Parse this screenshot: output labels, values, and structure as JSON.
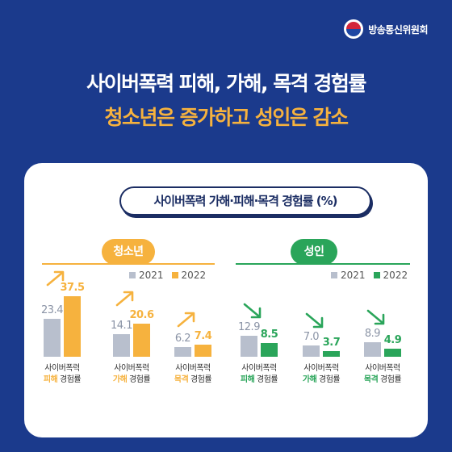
{
  "org": {
    "name": "방송통신위원회",
    "logo_icon": "taegeuk-logo"
  },
  "headline": {
    "line1": "사이버폭력 피해, 가해, 목격 경험률",
    "line2": "청소년은 증가하고 성인은 감소"
  },
  "card": {
    "title": "사이버폭력 가해·피해·목격 경험률 (%)"
  },
  "colors": {
    "background": "#1b3a8c",
    "youth_accent": "#f6b23e",
    "adult_accent": "#2aa55a",
    "year2021": "#b8bfcd",
    "headline2": "#f6b23e"
  },
  "chart_data": [
    {
      "type": "bar",
      "title": "청소년",
      "categories": [
        "사이버폭력 피해 경험률",
        "사이버폭력 가해 경험률",
        "사이버폭력 목격 경험률"
      ],
      "series": [
        {
          "name": "2021",
          "values": [
            23.4,
            14.1,
            6.2
          ]
        },
        {
          "name": "2022",
          "values": [
            37.5,
            20.6,
            7.4
          ]
        }
      ],
      "trend": "up"
    },
    {
      "type": "bar",
      "title": "성인",
      "categories": [
        "사이버폭력 피해 경험률",
        "사이버폭력 가해 경험률",
        "사이버폭력 목격 경험률"
      ],
      "series": [
        {
          "name": "2021",
          "values": [
            12.9,
            7.0,
            8.9
          ]
        },
        {
          "name": "2022",
          "values": [
            8.5,
            3.7,
            4.9
          ]
        }
      ],
      "trend": "down"
    }
  ],
  "groups": {
    "youth": {
      "label": "청소년",
      "legend": [
        "2021",
        "2022"
      ],
      "cats": [
        {
          "pre": "사이버폭력",
          "hl": "피해",
          "post": "경험률"
        },
        {
          "pre": "사이버폭력",
          "hl": "가해",
          "post": "경험률"
        },
        {
          "pre": "사이버폭력",
          "hl": "목격",
          "post": "경험률"
        }
      ],
      "values2021": [
        "23.4",
        "14.1",
        "6.2"
      ],
      "values2022": [
        "37.5",
        "20.6",
        "7.4"
      ]
    },
    "adult": {
      "label": "성인",
      "legend": [
        "2021",
        "2022"
      ],
      "cats": [
        {
          "pre": "사이버폭력",
          "hl": "피해",
          "post": "경험률"
        },
        {
          "pre": "사이버폭력",
          "hl": "가해",
          "post": "경험률"
        },
        {
          "pre": "사이버폭력",
          "hl": "목격",
          "post": "경험률"
        }
      ],
      "values2021": [
        "12.9",
        "7.0",
        "8.9"
      ],
      "values2022": [
        "8.5",
        "3.7",
        "4.9"
      ]
    }
  }
}
